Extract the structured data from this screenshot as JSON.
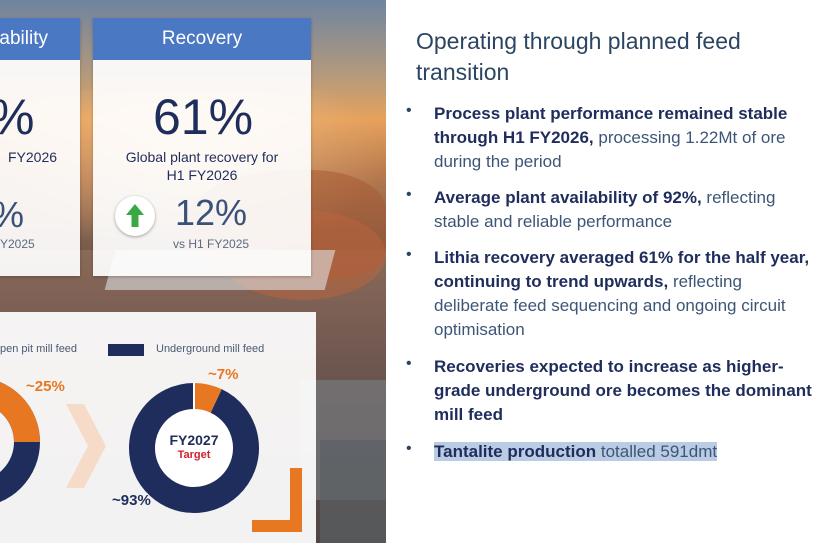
{
  "cards": {
    "availability": {
      "title": "ability",
      "big_value": "%",
      "subtitle": "FY2026",
      "change_value": "%",
      "change_label": "Y2025"
    },
    "recovery": {
      "title": "Recovery",
      "big_value": "61%",
      "subtitle_line1": "Global plant recovery for",
      "subtitle_line2": "H1 FY2026",
      "change_value": "12%",
      "change_label": "vs H1 FY2025"
    }
  },
  "donut_panel": {
    "legend_open_pit": "pen pit mill feed",
    "legend_underground": "Underground mill feed",
    "left_donut": {
      "pct_orange": "~25%"
    },
    "right_donut": {
      "pct_orange": "~7%",
      "pct_navy": "~93%",
      "center_title": "FY2027",
      "center_sub": "Target",
      "underground_fraction": 0.93,
      "open_pit_fraction": 0.07
    },
    "colors": {
      "navy": "#1f2d5c",
      "orange": "#e87722",
      "peach": "#f6dcc8"
    }
  },
  "right": {
    "heading": "Operating through planned feed transition",
    "bullets": [
      {
        "bold": "Process plant performance remained stable through H1 FY2026,",
        "rest": " processing 1.22Mt of ore during the period"
      },
      {
        "bold": "Average plant availability of 92%,",
        "rest": " reflecting stable and reliable performance"
      },
      {
        "bold": "Lithia recovery averaged 61% for the half year, continuing to trend upwards,",
        "rest": " reflecting deliberate feed sequencing and ongoing circuit optimisation"
      },
      {
        "bold": "Recoveries expected to increase as higher-grade underground ore becomes the dominant mill feed",
        "rest": ""
      },
      {
        "bold": "Tantalite production",
        "rest": " totalled 591dmt"
      }
    ],
    "bullet_char": "•"
  }
}
